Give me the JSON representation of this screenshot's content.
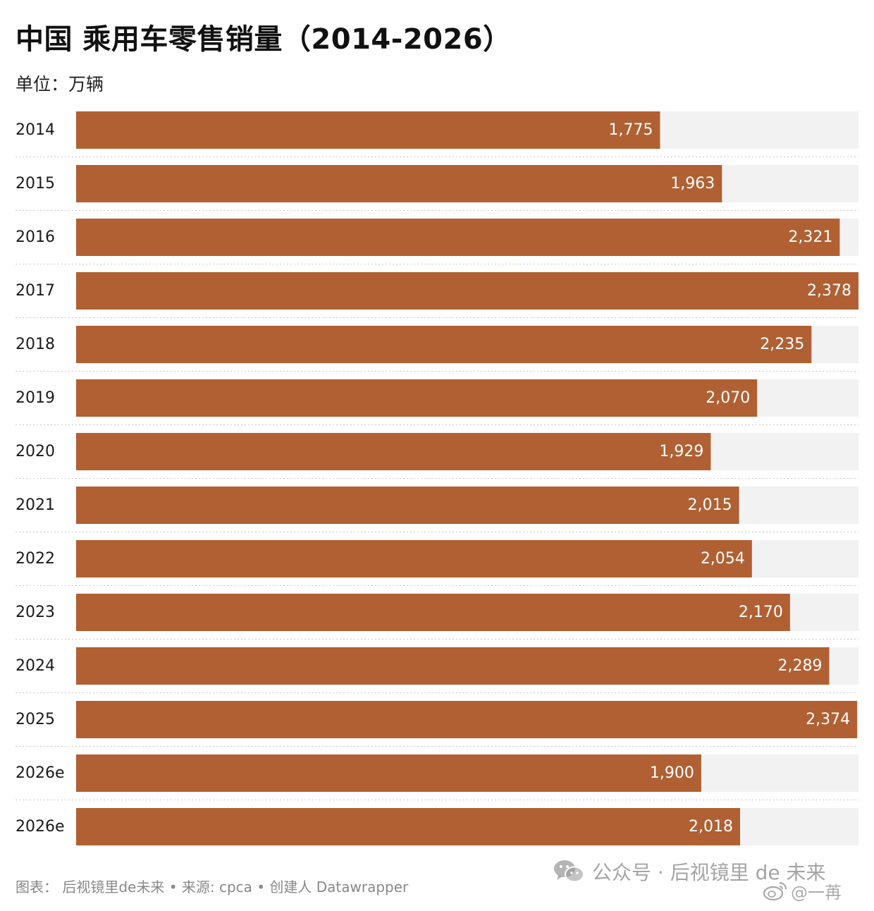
{
  "title": "中国 乘用车零售销量（2014-2026）",
  "subtitle": "单位：万辆",
  "footer": "图表： 后视镜里de未来 • 来源: cpca • 创建人 Datawrapper",
  "watermark": "公众号 · 后视镜里 de 未来",
  "watermark_weibo": "@一苒",
  "colors": {
    "bar": "#b06033",
    "track": "#f2f2f2",
    "label": "#ffffff",
    "separator": "#c8c8c8"
  },
  "chart_data": {
    "type": "bar",
    "orientation": "horizontal",
    "categories": [
      "2014",
      "2015",
      "2016",
      "2017",
      "2018",
      "2019",
      "2020",
      "2021",
      "2022",
      "2023",
      "2024",
      "2025",
      "2026e",
      "2026e"
    ],
    "values": [
      1775,
      1963,
      2321,
      2378,
      2235,
      2070,
      1929,
      2015,
      2054,
      2170,
      2289,
      2374,
      1900,
      2018
    ],
    "value_labels": [
      "1,775",
      "1,963",
      "2,321",
      "2,378",
      "2,235",
      "2,070",
      "1,929",
      "2,015",
      "2,054",
      "2,170",
      "2,289",
      "2,374",
      "1,900",
      "2,018"
    ],
    "xlim": [
      0,
      2378
    ],
    "unit": "万辆",
    "grid": false,
    "legend": "none"
  }
}
